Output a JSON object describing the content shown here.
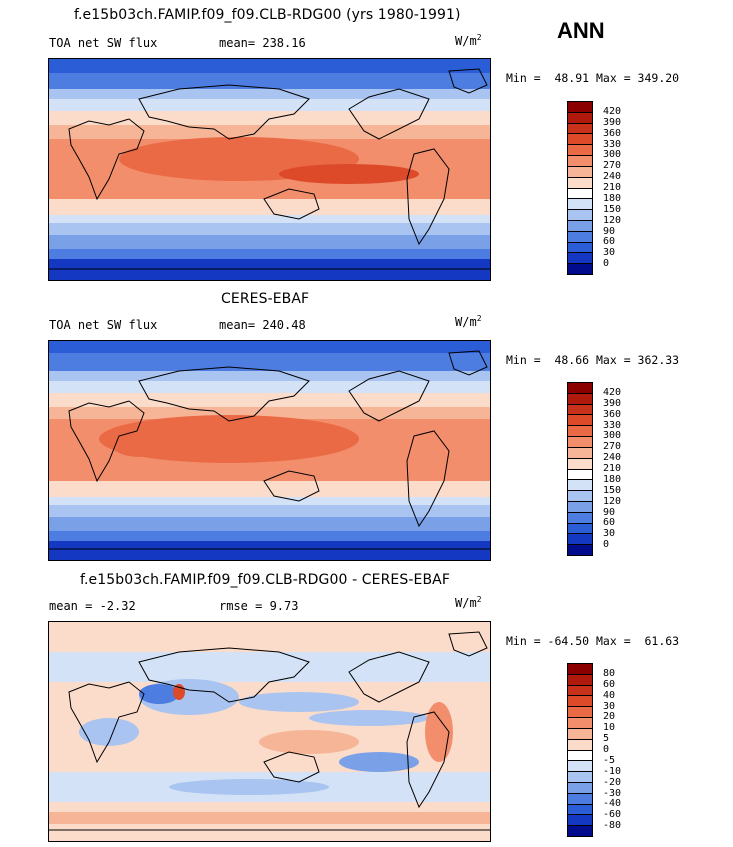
{
  "season": "ANN",
  "panels": [
    {
      "title": "f.e15b03ch.FAMIP.f09_f09.CLB-RDG00 (yrs 1980-1991)",
      "left_label": "TOA net SW flux",
      "mid_label": "mean= 238.16",
      "units": "W/m",
      "units_exp": "2",
      "minmax": "Min =  48.91 Max = 349.20",
      "colorbar_ticks": [
        "420",
        "390",
        "360",
        "330",
        "300",
        "270",
        "240",
        "210",
        "180",
        "150",
        "120",
        "90",
        "60",
        "30",
        "0"
      ],
      "colorbar_colors": [
        "#8a0000",
        "#b01a0c",
        "#c8321a",
        "#dc4a2a",
        "#ea6a45",
        "#f28e6c",
        "#f7b597",
        "#fbdccb",
        "#ffffff",
        "#d3e2f7",
        "#a9c4f0",
        "#7aa1e8",
        "#4d7de0",
        "#2a5dd6",
        "#1438c2",
        "#000c8c"
      ]
    },
    {
      "title": "CERES-EBAF",
      "left_label": "TOA net SW flux",
      "mid_label": "mean= 240.48",
      "units": "W/m",
      "units_exp": "2",
      "minmax": "Min =  48.66 Max = 362.33",
      "colorbar_ticks": [
        "420",
        "390",
        "360",
        "330",
        "300",
        "270",
        "240",
        "210",
        "180",
        "150",
        "120",
        "90",
        "60",
        "30",
        "0"
      ],
      "colorbar_colors": [
        "#8a0000",
        "#b01a0c",
        "#c8321a",
        "#dc4a2a",
        "#ea6a45",
        "#f28e6c",
        "#f7b597",
        "#fbdccb",
        "#ffffff",
        "#d3e2f7",
        "#a9c4f0",
        "#7aa1e8",
        "#4d7de0",
        "#2a5dd6",
        "#1438c2",
        "#000c8c"
      ]
    },
    {
      "title": "f.e15b03ch.FAMIP.f09_f09.CLB-RDG00 - CERES-EBAF",
      "left_label": "mean =   -2.32",
      "mid_label": "rmse =    9.73",
      "units": "W/m",
      "units_exp": "2",
      "minmax": "Min = -64.50 Max =  61.63",
      "colorbar_ticks": [
        "80",
        "60",
        "40",
        "30",
        "20",
        "10",
        "5",
        "0",
        "-5",
        "-10",
        "-20",
        "-30",
        "-40",
        "-60",
        "-80"
      ],
      "colorbar_colors": [
        "#8a0000",
        "#b01a0c",
        "#c8321a",
        "#dc4a2a",
        "#ea6a45",
        "#f28e6c",
        "#f7b597",
        "#fbdccb",
        "#ffffff",
        "#d3e2f7",
        "#a9c4f0",
        "#7aa1e8",
        "#4d7de0",
        "#2a5dd6",
        "#1438c2",
        "#000c8c"
      ]
    }
  ]
}
